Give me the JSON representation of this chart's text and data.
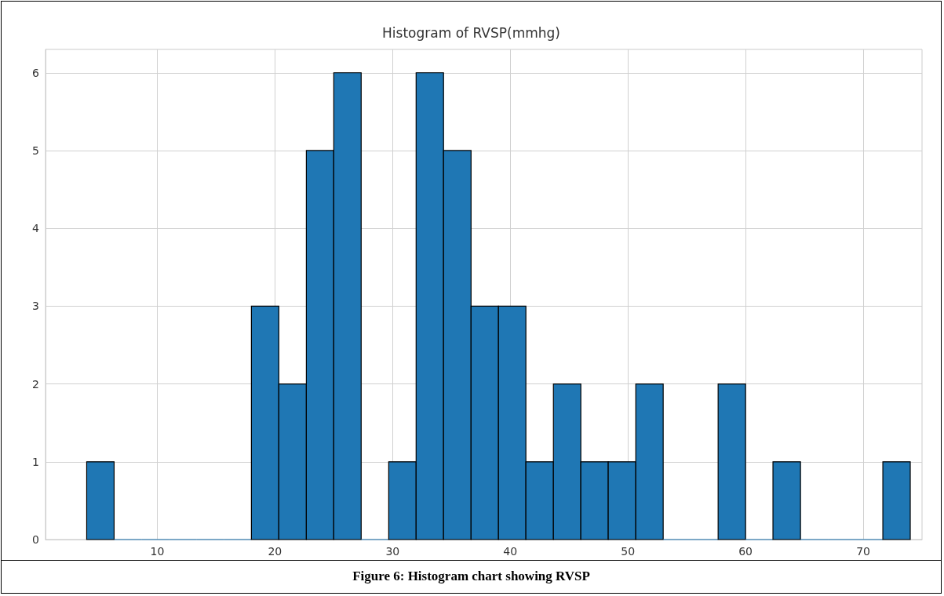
{
  "chart_data": {
    "type": "histogram",
    "title": "Histogram of RVSP(mmhg)",
    "bins": [
      4,
      6.33,
      8.67,
      11,
      13.33,
      15.67,
      18,
      20.33,
      22.67,
      25,
      27.33,
      29.67,
      32,
      34.33,
      36.67,
      39,
      41.33,
      43.67,
      46,
      48.33,
      50.67,
      53,
      55.33,
      57.67,
      60,
      62.33,
      64.67,
      67,
      69.33,
      71.67,
      74
    ],
    "values": [
      1,
      0,
      0,
      0,
      0,
      0,
      3,
      2,
      5,
      6,
      0,
      1,
      6,
      5,
      3,
      3,
      1,
      2,
      1,
      1,
      2,
      0,
      0,
      2,
      0,
      1,
      0,
      0,
      0,
      1
    ],
    "color": "#1f77b4",
    "xlim": [
      0.5,
      75
    ],
    "xticks": [
      10,
      20,
      30,
      40,
      50,
      60,
      70
    ],
    "ylim": [
      0,
      6.3
    ],
    "yticks": [
      0,
      1,
      2,
      3,
      4,
      5,
      6
    ],
    "grid": true,
    "annotations": [
      "Figure 6: Histogram chart showing RVSP"
    ]
  }
}
